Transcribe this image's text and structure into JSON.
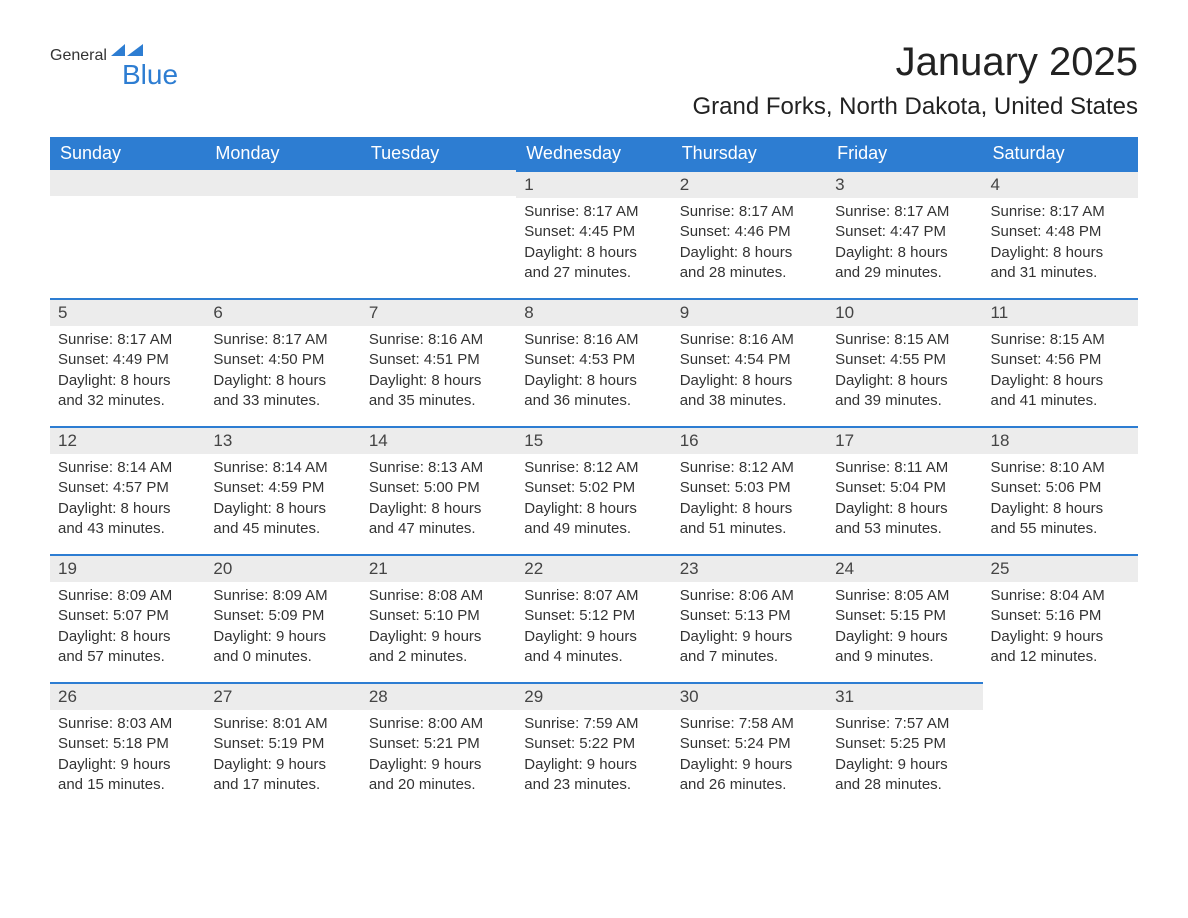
{
  "logo": {
    "word1": "General",
    "word2": "Blue",
    "flag_color": "#2d7dd2"
  },
  "title": "January 2025",
  "location": "Grand Forks, North Dakota, United States",
  "colors": {
    "header_bg": "#2d7dd2",
    "header_text": "#ffffff",
    "day_bar_bg": "#ececec",
    "day_bar_border": "#2d7dd2",
    "body_bg": "#ffffff",
    "text": "#333333"
  },
  "day_labels": [
    "Sunday",
    "Monday",
    "Tuesday",
    "Wednesday",
    "Thursday",
    "Friday",
    "Saturday"
  ],
  "weeks": [
    [
      null,
      null,
      null,
      {
        "n": "1",
        "sr": "8:17 AM",
        "ss": "4:45 PM",
        "dl": "8 hours and 27 minutes."
      },
      {
        "n": "2",
        "sr": "8:17 AM",
        "ss": "4:46 PM",
        "dl": "8 hours and 28 minutes."
      },
      {
        "n": "3",
        "sr": "8:17 AM",
        "ss": "4:47 PM",
        "dl": "8 hours and 29 minutes."
      },
      {
        "n": "4",
        "sr": "8:17 AM",
        "ss": "4:48 PM",
        "dl": "8 hours and 31 minutes."
      }
    ],
    [
      {
        "n": "5",
        "sr": "8:17 AM",
        "ss": "4:49 PM",
        "dl": "8 hours and 32 minutes."
      },
      {
        "n": "6",
        "sr": "8:17 AM",
        "ss": "4:50 PM",
        "dl": "8 hours and 33 minutes."
      },
      {
        "n": "7",
        "sr": "8:16 AM",
        "ss": "4:51 PM",
        "dl": "8 hours and 35 minutes."
      },
      {
        "n": "8",
        "sr": "8:16 AM",
        "ss": "4:53 PM",
        "dl": "8 hours and 36 minutes."
      },
      {
        "n": "9",
        "sr": "8:16 AM",
        "ss": "4:54 PM",
        "dl": "8 hours and 38 minutes."
      },
      {
        "n": "10",
        "sr": "8:15 AM",
        "ss": "4:55 PM",
        "dl": "8 hours and 39 minutes."
      },
      {
        "n": "11",
        "sr": "8:15 AM",
        "ss": "4:56 PM",
        "dl": "8 hours and 41 minutes."
      }
    ],
    [
      {
        "n": "12",
        "sr": "8:14 AM",
        "ss": "4:57 PM",
        "dl": "8 hours and 43 minutes."
      },
      {
        "n": "13",
        "sr": "8:14 AM",
        "ss": "4:59 PM",
        "dl": "8 hours and 45 minutes."
      },
      {
        "n": "14",
        "sr": "8:13 AM",
        "ss": "5:00 PM",
        "dl": "8 hours and 47 minutes."
      },
      {
        "n": "15",
        "sr": "8:12 AM",
        "ss": "5:02 PM",
        "dl": "8 hours and 49 minutes."
      },
      {
        "n": "16",
        "sr": "8:12 AM",
        "ss": "5:03 PM",
        "dl": "8 hours and 51 minutes."
      },
      {
        "n": "17",
        "sr": "8:11 AM",
        "ss": "5:04 PM",
        "dl": "8 hours and 53 minutes."
      },
      {
        "n": "18",
        "sr": "8:10 AM",
        "ss": "5:06 PM",
        "dl": "8 hours and 55 minutes."
      }
    ],
    [
      {
        "n": "19",
        "sr": "8:09 AM",
        "ss": "5:07 PM",
        "dl": "8 hours and 57 minutes."
      },
      {
        "n": "20",
        "sr": "8:09 AM",
        "ss": "5:09 PM",
        "dl": "9 hours and 0 minutes."
      },
      {
        "n": "21",
        "sr": "8:08 AM",
        "ss": "5:10 PM",
        "dl": "9 hours and 2 minutes."
      },
      {
        "n": "22",
        "sr": "8:07 AM",
        "ss": "5:12 PM",
        "dl": "9 hours and 4 minutes."
      },
      {
        "n": "23",
        "sr": "8:06 AM",
        "ss": "5:13 PM",
        "dl": "9 hours and 7 minutes."
      },
      {
        "n": "24",
        "sr": "8:05 AM",
        "ss": "5:15 PM",
        "dl": "9 hours and 9 minutes."
      },
      {
        "n": "25",
        "sr": "8:04 AM",
        "ss": "5:16 PM",
        "dl": "9 hours and 12 minutes."
      }
    ],
    [
      {
        "n": "26",
        "sr": "8:03 AM",
        "ss": "5:18 PM",
        "dl": "9 hours and 15 minutes."
      },
      {
        "n": "27",
        "sr": "8:01 AM",
        "ss": "5:19 PM",
        "dl": "9 hours and 17 minutes."
      },
      {
        "n": "28",
        "sr": "8:00 AM",
        "ss": "5:21 PM",
        "dl": "9 hours and 20 minutes."
      },
      {
        "n": "29",
        "sr": "7:59 AM",
        "ss": "5:22 PM",
        "dl": "9 hours and 23 minutes."
      },
      {
        "n": "30",
        "sr": "7:58 AM",
        "ss": "5:24 PM",
        "dl": "9 hours and 26 minutes."
      },
      {
        "n": "31",
        "sr": "7:57 AM",
        "ss": "5:25 PM",
        "dl": "9 hours and 28 minutes."
      },
      null
    ]
  ],
  "labels": {
    "sunrise": "Sunrise:",
    "sunset": "Sunset:",
    "daylight": "Daylight:"
  }
}
